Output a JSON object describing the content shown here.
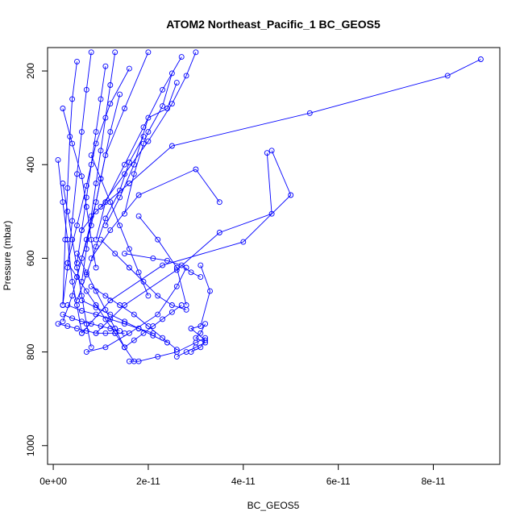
{
  "chart_data": {
    "type": "line",
    "title": "ATOM2 Northeast_Pacific_1 BC_GEOS5",
    "xlabel": "BC_GEOS5",
    "ylabel": "Pressure (mbar)",
    "xlim": [
      -1.2e-12,
      9.4e-11
    ],
    "ylim": [
      1040,
      150
    ],
    "y_reversed": true,
    "grid": false,
    "legend": "none",
    "x_ticks": [
      0,
      2e-11,
      4e-11,
      6e-11,
      8e-11
    ],
    "x_tick_labels": [
      "0e+00",
      "2e-11",
      "4e-11",
      "6e-11",
      "8e-11"
    ],
    "y_ticks": [
      200,
      400,
      600,
      800,
      1000
    ],
    "y_tick_labels": [
      "200",
      "400",
      "600",
      "800",
      "1000"
    ],
    "series_color": "#0000ff",
    "series": [
      {
        "x": [
          9e-11,
          8.3e-11,
          5.4e-11,
          2.5e-11,
          1.6e-11,
          9e-12,
          6e-12
        ],
        "y": [
          175,
          210,
          290,
          360,
          440,
          500,
          540
        ]
      },
      {
        "x": [
          4.6e-11,
          5e-11,
          4e-11,
          2.3e-11,
          1.2e-11,
          6e-12
        ],
        "y": [
          370,
          465,
          565,
          615,
          690,
          760
        ]
      },
      {
        "x": [
          4.5e-11,
          4.6e-11,
          3.5e-11,
          2.6e-11,
          1.5e-11,
          9e-12
        ],
        "y": [
          375,
          505,
          545,
          625,
          700,
          760
        ]
      },
      {
        "x": [
          3.5e-11,
          3e-11,
          1.8e-11,
          1.2e-11,
          8e-12
        ],
        "y": [
          480,
          410,
          465,
          540,
          600
        ]
      },
      {
        "x": [
          3.1e-11,
          3.3e-11,
          3.1e-11,
          2.9e-11,
          3.2e-11,
          3.1e-11,
          2.9e-11
        ],
        "y": [
          615,
          670,
          745,
          750,
          775,
          790,
          800
        ]
      },
      {
        "x": [
          2.8e-11,
          2.6e-11,
          2.2e-11,
          1.6e-11,
          1.1e-11,
          7e-12
        ],
        "y": [
          620,
          660,
          720,
          760,
          790,
          800
        ]
      },
      {
        "x": [
          3.2e-11,
          3e-11,
          2.6e-11,
          2.2e-11,
          1.8e-11,
          1.6e-11
        ],
        "y": [
          770,
          780,
          800,
          810,
          820,
          820
        ]
      },
      {
        "x": [
          2.5e-11,
          2.3e-11,
          2e-11,
          1.9e-11,
          1.7e-11,
          1.5e-11
        ],
        "y": [
          205,
          275,
          330,
          355,
          420,
          505
        ]
      },
      {
        "x": [
          2e-11,
          1.5e-11,
          1.1e-11,
          9e-12,
          7e-12,
          5e-12
        ],
        "y": [
          160,
          280,
          380,
          480,
          560,
          640
        ]
      },
      {
        "x": [
          1.4e-11,
          1.2e-11,
          1e-11,
          8e-12,
          6e-12,
          4e-12,
          2e-12
        ],
        "y": [
          250,
          330,
          430,
          530,
          600,
          680,
          735
        ]
      },
      {
        "x": [
          8e-12,
          7e-12,
          6e-12,
          5e-12,
          4e-12,
          3e-12,
          2e-12
        ],
        "y": [
          160,
          240,
          330,
          420,
          520,
          620,
          700
        ]
      },
      {
        "x": [
          5e-12,
          4e-12,
          3.5e-12,
          3e-12,
          2.5e-12,
          2e-12
        ],
        "y": [
          180,
          260,
          340,
          450,
          560,
          700
        ]
      },
      {
        "x": [
          1e-12,
          2e-12,
          3e-12,
          4e-12,
          5e-12,
          6e-12
        ],
        "y": [
          390,
          480,
          560,
          650,
          700,
          760
        ]
      },
      {
        "x": [
          1.6e-11,
          1.2e-11,
          9e-12,
          7e-12,
          5e-12,
          3e-12
        ],
        "y": [
          195,
          270,
          355,
          445,
          530,
          610
        ]
      },
      {
        "x": [
          2e-12,
          4e-12,
          6e-12,
          7e-12,
          8e-12,
          9e-12
        ],
        "y": [
          280,
          355,
          425,
          490,
          560,
          620
        ]
      },
      {
        "x": [
          1.9e-11,
          1.6e-11,
          1.4e-11,
          1.1e-11,
          9e-12,
          7e-12,
          5e-12
        ],
        "y": [
          340,
          395,
          455,
          515,
          575,
          635,
          690
        ]
      },
      {
        "x": [
          2.6e-11,
          2.4e-11,
          2e-11,
          1.7e-11,
          1.4e-11,
          1.1e-11
        ],
        "y": [
          225,
          280,
          300,
          400,
          470,
          530
        ]
      },
      {
        "x": [
          3e-12,
          6e-12,
          9e-12,
          1.2e-11,
          1.5e-11,
          1.8e-11,
          2.1e-11
        ],
        "y": [
          700,
          712,
          720,
          730,
          740,
          750,
          760
        ]
      },
      {
        "x": [
          1e-12,
          3e-12,
          5e-12,
          7e-12,
          9e-12,
          1.1e-11,
          1.3e-11,
          1.5e-11
        ],
        "y": [
          740,
          745,
          750,
          755,
          760,
          760,
          760,
          760
        ]
      },
      {
        "x": [
          2e-12,
          4e-12,
          6e-12,
          8e-12,
          1e-11,
          1.2e-11,
          1.4e-11
        ],
        "y": [
          720,
          728,
          735,
          740,
          745,
          750,
          755
        ]
      },
      {
        "x": [
          6e-12,
          9e-12,
          1.2e-11,
          1.5e-11,
          1.8e-11,
          2.1e-11,
          2.4e-11
        ],
        "y": [
          690,
          705,
          720,
          735,
          750,
          765,
          780
        ]
      },
      {
        "x": [
          8e-12,
          1.1e-11,
          1.4e-11,
          1.7e-11,
          2e-11,
          2.3e-11,
          2.6e-11
        ],
        "y": [
          660,
          680,
          700,
          720,
          745,
          770,
          795
        ]
      },
      {
        "x": [
          1e-11,
          1.3e-11,
          1.6e-11,
          1.9e-11,
          2.2e-11,
          2.5e-11,
          2.8e-11
        ],
        "y": [
          560,
          590,
          620,
          650,
          680,
          700,
          710
        ]
      },
      {
        "x": [
          1.5e-11,
          2.1e-11,
          2.4e-11,
          2.7e-11,
          2.9e-11,
          3.1e-11
        ],
        "y": [
          590,
          600,
          605,
          615,
          630,
          640
        ]
      },
      {
        "x": [
          1.8e-11,
          2.2e-11,
          2.6e-11,
          2.8e-11
        ],
        "y": [
          510,
          560,
          620,
          700
        ]
      },
      {
        "x": [
          8e-12,
          1e-11,
          1.2e-11,
          1.4e-11,
          1.6e-11,
          1.8e-11,
          2e-11
        ],
        "y": [
          380,
          430,
          480,
          530,
          580,
          630,
          680
        ]
      },
      {
        "x": [
          3e-12,
          5e-12,
          7e-12,
          9e-12,
          1.1e-11,
          1.3e-11,
          1.5e-11,
          1.7e-11
        ],
        "y": [
          610,
          640,
          670,
          700,
          730,
          760,
          790,
          820
        ]
      },
      {
        "x": [
          5e-12,
          7e-12,
          9e-12,
          1.1e-11,
          1.3e-11,
          1.5e-11
        ],
        "y": [
          590,
          630,
          670,
          710,
          750,
          790
        ]
      },
      {
        "x": [
          2.7e-11,
          2.3e-11,
          1.9e-11,
          1.5e-11,
          1.1e-11,
          9e-12
        ],
        "y": [
          170,
          240,
          320,
          400,
          480,
          560
        ]
      },
      {
        "x": [
          1.3e-11,
          1.2e-11,
          1.1e-11,
          1e-11,
          9e-12,
          8e-12,
          7e-12,
          6e-12
        ],
        "y": [
          160,
          230,
          300,
          370,
          440,
          510,
          580,
          650
        ]
      },
      {
        "x": [
          2e-12,
          3e-12,
          4e-12,
          5e-12,
          6e-12,
          7e-12,
          8e-12
        ],
        "y": [
          440,
          500,
          560,
          620,
          680,
          740,
          790
        ]
      },
      {
        "x": [
          3.2e-11,
          3.1e-11,
          3e-11,
          3.2e-11,
          3e-11,
          2.8e-11,
          2.6e-11
        ],
        "y": [
          740,
          760,
          770,
          780,
          790,
          800,
          810
        ]
      },
      {
        "x": [
          2.7e-11,
          2.5e-11,
          2.3e-11,
          2.1e-11,
          1.9e-11,
          1.7e-11,
          1.5e-11
        ],
        "y": [
          700,
          715,
          730,
          745,
          760,
          775,
          790
        ]
      },
      {
        "x": [
          1.1e-11,
          1e-11,
          9e-12,
          8e-12,
          7e-12,
          6e-12,
          5e-12
        ],
        "y": [
          190,
          260,
          330,
          400,
          470,
          540,
          610
        ]
      },
      {
        "x": [
          3e-11,
          2.8e-11,
          2.5e-11,
          2e-11,
          1.5e-11,
          1e-11
        ],
        "y": [
          160,
          210,
          270,
          350,
          420,
          490
        ]
      }
    ]
  }
}
